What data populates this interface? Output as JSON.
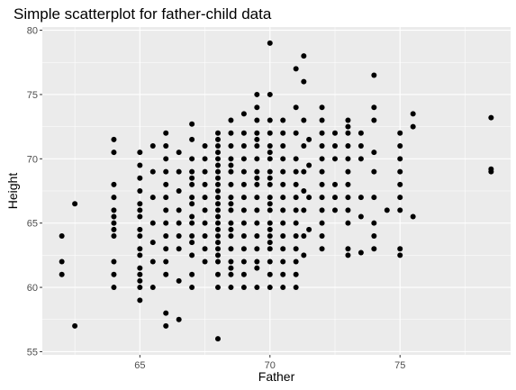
{
  "chart_data": {
    "type": "scatter",
    "title": "Simple scatterplot for father-child data",
    "xlabel": "Father",
    "ylabel": "Height",
    "xlim": [
      61.25,
      79.25
    ],
    "ylim": [
      54.75,
      80.25
    ],
    "xticks": [
      65,
      70,
      75
    ],
    "yticks": [
      55,
      60,
      65,
      70,
      75,
      80
    ],
    "grid": true,
    "legend": "none",
    "colors": {
      "panel": "#ebebeb",
      "grid_major": "#ffffff",
      "point": "#000000",
      "tick_text": "#4d4d4d",
      "tick_mark": "#333333"
    },
    "points": [
      [
        62.0,
        64.0
      ],
      [
        62.0,
        62.0
      ],
      [
        62.0,
        61.0
      ],
      [
        62.5,
        66.5
      ],
      [
        62.5,
        57.0
      ],
      [
        64.0,
        71.5
      ],
      [
        64.0,
        70.5
      ],
      [
        64.0,
        68.0
      ],
      [
        64.0,
        67.0
      ],
      [
        64.0,
        66.0
      ],
      [
        64.0,
        65.5
      ],
      [
        64.0,
        65.0
      ],
      [
        64.0,
        64.5
      ],
      [
        64.0,
        64.0
      ],
      [
        64.0,
        62.0
      ],
      [
        64.0,
        61.0
      ],
      [
        64.0,
        60.0
      ],
      [
        65.0,
        70.5
      ],
      [
        65.0,
        69.5
      ],
      [
        65.0,
        68.5
      ],
      [
        65.0,
        67.5
      ],
      [
        65.0,
        66.5
      ],
      [
        65.0,
        66.0
      ],
      [
        65.0,
        65.5
      ],
      [
        65.0,
        64.5
      ],
      [
        65.0,
        64.0
      ],
      [
        65.0,
        63.0
      ],
      [
        65.0,
        62.5
      ],
      [
        65.0,
        61.5
      ],
      [
        65.0,
        61.0
      ],
      [
        65.0,
        60.5
      ],
      [
        65.0,
        60.0
      ],
      [
        65.0,
        59.0
      ],
      [
        65.5,
        71.0
      ],
      [
        65.5,
        69.0
      ],
      [
        65.5,
        67.0
      ],
      [
        65.5,
        65.0
      ],
      [
        65.5,
        63.5
      ],
      [
        65.5,
        62.0
      ],
      [
        65.5,
        60.0
      ],
      [
        66.0,
        72.0
      ],
      [
        66.0,
        71.0
      ],
      [
        66.0,
        70.0
      ],
      [
        66.0,
        69.0
      ],
      [
        66.0,
        68.0
      ],
      [
        66.0,
        67.0
      ],
      [
        66.0,
        66.0
      ],
      [
        66.0,
        65.0
      ],
      [
        66.0,
        64.0
      ],
      [
        66.0,
        63.0
      ],
      [
        66.0,
        62.0
      ],
      [
        66.0,
        61.0
      ],
      [
        66.0,
        58.0
      ],
      [
        66.0,
        57.0
      ],
      [
        66.5,
        70.5
      ],
      [
        66.5,
        69.0
      ],
      [
        66.5,
        67.5
      ],
      [
        66.5,
        66.0
      ],
      [
        66.5,
        65.0
      ],
      [
        66.5,
        64.0
      ],
      [
        66.5,
        63.0
      ],
      [
        66.5,
        60.5
      ],
      [
        66.5,
        57.5
      ],
      [
        67.0,
        72.7
      ],
      [
        67.0,
        71.5
      ],
      [
        67.0,
        70.0
      ],
      [
        67.0,
        69.0
      ],
      [
        67.0,
        68.5
      ],
      [
        67.0,
        68.0
      ],
      [
        67.0,
        67.0
      ],
      [
        67.0,
        66.5
      ],
      [
        67.0,
        65.5
      ],
      [
        67.0,
        65.0
      ],
      [
        67.0,
        64.0
      ],
      [
        67.0,
        63.5
      ],
      [
        67.0,
        62.5
      ],
      [
        67.0,
        61.0
      ],
      [
        67.0,
        60.0
      ],
      [
        67.5,
        71.0
      ],
      [
        67.5,
        70.0
      ],
      [
        67.5,
        69.0
      ],
      [
        67.5,
        68.0
      ],
      [
        67.5,
        67.0
      ],
      [
        67.5,
        66.0
      ],
      [
        67.5,
        65.0
      ],
      [
        67.5,
        64.0
      ],
      [
        67.5,
        63.0
      ],
      [
        67.5,
        62.0
      ],
      [
        68.0,
        72.0
      ],
      [
        68.0,
        71.5
      ],
      [
        68.0,
        71.0
      ],
      [
        68.0,
        70.5
      ],
      [
        68.0,
        70.0
      ],
      [
        68.0,
        69.5
      ],
      [
        68.0,
        69.0
      ],
      [
        68.0,
        68.5
      ],
      [
        68.0,
        68.0
      ],
      [
        68.0,
        67.5
      ],
      [
        68.0,
        67.0
      ],
      [
        68.0,
        66.5
      ],
      [
        68.0,
        66.0
      ],
      [
        68.0,
        65.5
      ],
      [
        68.0,
        65.0
      ],
      [
        68.0,
        64.5
      ],
      [
        68.0,
        64.0
      ],
      [
        68.0,
        63.5
      ],
      [
        68.0,
        63.0
      ],
      [
        68.0,
        62.5
      ],
      [
        68.0,
        62.0
      ],
      [
        68.0,
        61.0
      ],
      [
        68.0,
        60.0
      ],
      [
        68.0,
        56.0
      ],
      [
        68.5,
        73.0
      ],
      [
        68.5,
        72.0
      ],
      [
        68.5,
        71.0
      ],
      [
        68.5,
        70.0
      ],
      [
        68.5,
        69.5
      ],
      [
        68.5,
        69.0
      ],
      [
        68.5,
        68.0
      ],
      [
        68.5,
        67.0
      ],
      [
        68.5,
        66.5
      ],
      [
        68.5,
        66.0
      ],
      [
        68.5,
        65.0
      ],
      [
        68.5,
        64.5
      ],
      [
        68.5,
        64.0
      ],
      [
        68.5,
        63.0
      ],
      [
        68.5,
        62.0
      ],
      [
        68.5,
        61.5
      ],
      [
        68.5,
        61.0
      ],
      [
        68.5,
        60.0
      ],
      [
        69.0,
        73.5
      ],
      [
        69.0,
        72.0
      ],
      [
        69.0,
        71.0
      ],
      [
        69.0,
        70.0
      ],
      [
        69.0,
        69.0
      ],
      [
        69.0,
        68.0
      ],
      [
        69.0,
        67.0
      ],
      [
        69.0,
        66.0
      ],
      [
        69.0,
        65.0
      ],
      [
        69.0,
        64.0
      ],
      [
        69.0,
        63.0
      ],
      [
        69.0,
        62.0
      ],
      [
        69.0,
        61.0
      ],
      [
        69.0,
        60.0
      ],
      [
        69.5,
        75.0
      ],
      [
        69.5,
        74.0
      ],
      [
        69.5,
        73.0
      ],
      [
        69.5,
        72.0
      ],
      [
        69.5,
        71.5
      ],
      [
        69.5,
        71.0
      ],
      [
        69.5,
        70.0
      ],
      [
        69.5,
        69.0
      ],
      [
        69.5,
        68.5
      ],
      [
        69.5,
        68.0
      ],
      [
        69.5,
        67.0
      ],
      [
        69.5,
        66.0
      ],
      [
        69.5,
        65.0
      ],
      [
        69.5,
        64.0
      ],
      [
        69.5,
        63.0
      ],
      [
        69.5,
        62.0
      ],
      [
        69.5,
        61.5
      ],
      [
        69.5,
        60.0
      ],
      [
        70.0,
        79.0
      ],
      [
        70.0,
        75.0
      ],
      [
        70.0,
        73.0
      ],
      [
        70.0,
        72.0
      ],
      [
        70.0,
        71.0
      ],
      [
        70.0,
        70.5
      ],
      [
        70.0,
        70.0
      ],
      [
        70.0,
        69.0
      ],
      [
        70.0,
        68.5
      ],
      [
        70.0,
        68.0
      ],
      [
        70.0,
        67.0
      ],
      [
        70.0,
        66.5
      ],
      [
        70.0,
        66.0
      ],
      [
        70.0,
        65.0
      ],
      [
        70.0,
        64.5
      ],
      [
        70.0,
        64.0
      ],
      [
        70.0,
        63.5
      ],
      [
        70.0,
        63.0
      ],
      [
        70.0,
        62.0
      ],
      [
        70.0,
        61.0
      ],
      [
        70.0,
        60.0
      ],
      [
        70.5,
        73.0
      ],
      [
        70.5,
        72.0
      ],
      [
        70.5,
        71.0
      ],
      [
        70.5,
        70.0
      ],
      [
        70.5,
        69.0
      ],
      [
        70.5,
        68.0
      ],
      [
        70.5,
        67.0
      ],
      [
        70.5,
        66.0
      ],
      [
        70.5,
        65.0
      ],
      [
        70.5,
        64.0
      ],
      [
        70.5,
        63.0
      ],
      [
        70.5,
        62.0
      ],
      [
        70.5,
        61.0
      ],
      [
        70.5,
        60.0
      ],
      [
        71.0,
        77.0
      ],
      [
        71.0,
        74.0
      ],
      [
        71.0,
        72.0
      ],
      [
        71.0,
        70.0
      ],
      [
        71.0,
        69.0
      ],
      [
        71.0,
        68.0
      ],
      [
        71.0,
        67.0
      ],
      [
        71.0,
        66.0
      ],
      [
        71.0,
        65.0
      ],
      [
        71.0,
        64.0
      ],
      [
        71.0,
        63.0
      ],
      [
        71.0,
        62.0
      ],
      [
        71.0,
        61.0
      ],
      [
        71.0,
        60.0
      ],
      [
        71.3,
        78.0
      ],
      [
        71.3,
        76.0
      ],
      [
        71.3,
        73.0
      ],
      [
        71.3,
        71.0
      ],
      [
        71.3,
        69.0
      ],
      [
        71.3,
        67.5
      ],
      [
        71.3,
        66.0
      ],
      [
        71.3,
        64.0
      ],
      [
        71.3,
        62.5
      ],
      [
        71.5,
        71.5
      ],
      [
        71.5,
        69.5
      ],
      [
        71.5,
        67.0
      ],
      [
        71.5,
        64.5
      ],
      [
        72.0,
        74.0
      ],
      [
        72.0,
        73.0
      ],
      [
        72.0,
        72.0
      ],
      [
        72.0,
        71.0
      ],
      [
        72.0,
        70.0
      ],
      [
        72.0,
        69.0
      ],
      [
        72.0,
        68.0
      ],
      [
        72.0,
        67.0
      ],
      [
        72.0,
        66.0
      ],
      [
        72.0,
        65.0
      ],
      [
        72.0,
        64.0
      ],
      [
        72.0,
        63.0
      ],
      [
        72.5,
        72.0
      ],
      [
        72.5,
        71.0
      ],
      [
        72.5,
        70.0
      ],
      [
        72.5,
        68.0
      ],
      [
        72.5,
        67.0
      ],
      [
        72.5,
        66.0
      ],
      [
        73.0,
        73.0
      ],
      [
        73.0,
        72.5
      ],
      [
        73.0,
        72.0
      ],
      [
        73.0,
        71.0
      ],
      [
        73.0,
        70.0
      ],
      [
        73.0,
        69.0
      ],
      [
        73.0,
        68.0
      ],
      [
        73.0,
        67.0
      ],
      [
        73.0,
        66.0
      ],
      [
        73.0,
        65.0
      ],
      [
        73.0,
        63.0
      ],
      [
        73.0,
        62.5
      ],
      [
        73.5,
        72.0
      ],
      [
        73.5,
        71.0
      ],
      [
        73.5,
        70.0
      ],
      [
        73.5,
        67.0
      ],
      [
        73.5,
        65.5
      ],
      [
        73.5,
        62.7
      ],
      [
        74.0,
        76.5
      ],
      [
        74.0,
        74.0
      ],
      [
        74.0,
        73.0
      ],
      [
        74.0,
        70.5
      ],
      [
        74.0,
        69.0
      ],
      [
        74.0,
        67.0
      ],
      [
        74.0,
        65.0
      ],
      [
        74.0,
        64.0
      ],
      [
        74.0,
        63.0
      ],
      [
        74.5,
        66.0
      ],
      [
        75.0,
        72.0
      ],
      [
        75.0,
        71.0
      ],
      [
        75.0,
        70.0
      ],
      [
        75.0,
        69.0
      ],
      [
        75.0,
        68.0
      ],
      [
        75.0,
        67.0
      ],
      [
        75.0,
        66.0
      ],
      [
        75.0,
        63.0
      ],
      [
        75.0,
        62.5
      ],
      [
        75.5,
        73.5
      ],
      [
        75.5,
        72.5
      ],
      [
        75.5,
        65.5
      ],
      [
        78.5,
        73.2
      ],
      [
        78.5,
        69.2
      ],
      [
        78.5,
        69.0
      ]
    ]
  }
}
